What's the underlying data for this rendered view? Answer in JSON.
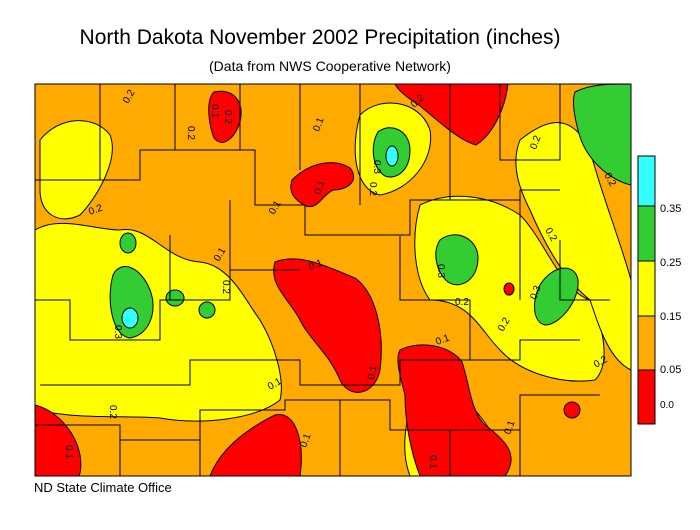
{
  "title": "North Dakota November 2002 Precipitation (inches)",
  "subtitle": "(Data from NWS Cooperative Network)",
  "credit": "ND State Climate Office",
  "legend": {
    "labels": [
      "0.35",
      "0.25",
      "0.15",
      "0.05",
      "0.0"
    ],
    "bins": [
      {
        "range": "0.35+",
        "color": "#33ffff"
      },
      {
        "range": "0.25-0.35",
        "color": "#33cc33"
      },
      {
        "range": "0.15-0.25",
        "color": "#ffff00"
      },
      {
        "range": "0.05-0.15",
        "color": "#ffaa00"
      },
      {
        "range": "0.0-0.05",
        "color": "#ff0000"
      }
    ]
  },
  "contour_labels": [
    "0.2",
    "0.1",
    "0.2",
    "0.1",
    "0.2",
    "0.1",
    "0.3",
    "0.2",
    "0.2",
    "0.3",
    "0.2",
    "0.1",
    "0.1",
    "0.2",
    "0.3",
    "0.2",
    "0.1",
    "0.2",
    "0.3",
    "0.2",
    "0.1",
    "0.1",
    "0.2",
    "0.1",
    "0.2",
    "0.1",
    "0.1",
    "0.1",
    "0.2",
    "0.2",
    "0.1"
  ],
  "colors": {
    "zero": "#ff0000",
    "low": "#ffaa00",
    "mid": "#ffff00",
    "high": "#33cc33",
    "top": "#33ffff"
  }
}
